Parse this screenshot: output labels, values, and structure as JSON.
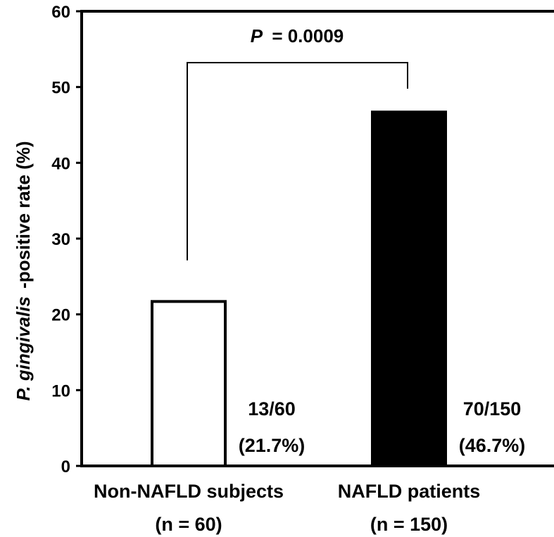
{
  "chart_data": {
    "type": "bar",
    "categories": [
      "Non-NAFLD subjects",
      "NAFLD patients"
    ],
    "category_sublabels": [
      "(n = 60)",
      "(n = 150)"
    ],
    "values": [
      21.7,
      46.7
    ],
    "bar_fills": [
      "#ffffff",
      "#000000"
    ],
    "bar_annotations": [
      {
        "line1": "13/60",
        "line2": "(21.7%)"
      },
      {
        "line1": "70/150",
        "line2": "(46.7%)"
      }
    ],
    "ylabel": {
      "italic": "P. gingivalis",
      "rest": "-positive rate (%)"
    },
    "ylim": [
      0,
      60
    ],
    "yticks": [
      0,
      10,
      20,
      30,
      40,
      50,
      60
    ],
    "grid": false,
    "significance": {
      "p_label": "P",
      "p_text": "= 0.0009"
    }
  }
}
